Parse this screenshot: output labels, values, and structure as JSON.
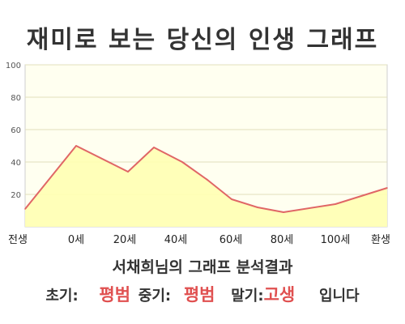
{
  "chart_data": {
    "type": "area",
    "title": "재미로 보는 당신의 인생 그래프",
    "ylim": [
      0,
      100
    ],
    "yticks": [
      "20",
      "40",
      "60",
      "80",
      "100"
    ],
    "xticks": [
      "전생",
      "0세",
      "20세",
      "40세",
      "60세",
      "80세",
      "100세",
      "환생"
    ],
    "x": [
      "전생",
      "0세",
      "20세",
      "25세",
      "40세",
      "50세",
      "60세",
      "70세",
      "80세",
      "100세",
      "환생"
    ],
    "values": [
      11,
      50,
      34,
      49,
      40,
      29,
      17,
      12,
      9,
      14,
      24
    ],
    "grid": true,
    "legend": "none",
    "colors": {
      "line": "#e06666",
      "fill": "#ffffb3",
      "plot_background": "#fffff0",
      "grid": "#e2dfbd"
    }
  },
  "summary": {
    "title": "서채희님의 그래프 분석결과",
    "early_label": "초기:",
    "early_value": "평범",
    "mid_label": "중기:",
    "mid_value": "평범",
    "late_label": "말기:",
    "late_value": "고생",
    "ending": "입니다",
    "highlight_color": "#e05050"
  }
}
